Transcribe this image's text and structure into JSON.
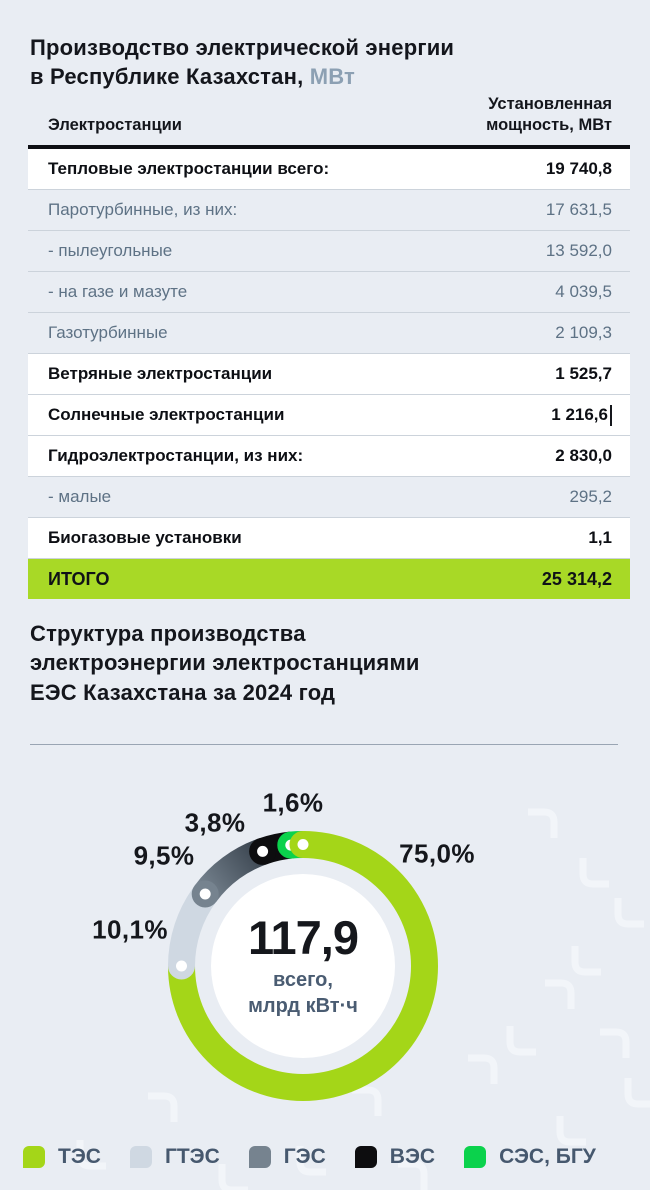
{
  "header": {
    "title_line1": "Производство электрической энергии",
    "title_line2": "в Республике Казахстан,",
    "title_unit": "МВт"
  },
  "section2": {
    "title_line1": "Структура производства",
    "title_line2": "электроэнергии электростанциями",
    "title_line3": "ЕЭС Казахстана за 2024 год"
  },
  "chart_data": [
    {
      "type": "table",
      "title": "Производство электрической энергии в Республике Казахстан, МВт",
      "columns": [
        "Электростанции",
        "Установленная мощность, МВт"
      ],
      "rows": [
        {
          "label": "Тепловые электростанции всего:",
          "value": "19 740,8",
          "emphasis": "bold"
        },
        {
          "label": "Паротурбинные, из них:",
          "value": "17 631,5",
          "emphasis": "sub"
        },
        {
          "label": "- пылеугольные",
          "value": "13 592,0",
          "emphasis": "sub"
        },
        {
          "label": "- на газе и мазуте",
          "value": "4 039,5",
          "emphasis": "sub"
        },
        {
          "label": "Газотурбинные",
          "value": "2 109,3",
          "emphasis": "sub"
        },
        {
          "label": "Ветряные электростанции",
          "value": "1 525,7",
          "emphasis": "bold"
        },
        {
          "label": "Солнечные электростанции",
          "value": "1 216,6",
          "emphasis": "bold",
          "text_cursor": true
        },
        {
          "label": "Гидроэлектростанции, из них:",
          "value": "2 830,0",
          "emphasis": "bold"
        },
        {
          "label": "- малые",
          "value": "295,2",
          "emphasis": "sub"
        },
        {
          "label": "Биогазовые установки",
          "value": "1,1",
          "emphasis": "bold"
        },
        {
          "label": "ИТОГО",
          "value": "25 314,2",
          "emphasis": "total"
        }
      ],
      "total_row_color": "#a8d926"
    },
    {
      "type": "pie",
      "donut": true,
      "title": "Структура производства электроэнергии электростанциями ЕЭС Казахстана за 2024 год",
      "unit": "%",
      "start_angle_deg": 0,
      "direction": "clockwise",
      "center_value": "117,9",
      "center_label_line1": "всего,",
      "center_label_line2": "млрд кВт·ч",
      "segments": [
        {
          "name": "ТЭС",
          "pct": 75.0,
          "label": "75,0%",
          "color": "#a4d618"
        },
        {
          "name": "ГТЭС",
          "pct": 10.1,
          "label": "10,1%",
          "color": "#cfd8e2"
        },
        {
          "name": "ГЭС",
          "pct": 9.5,
          "label": "9,5%",
          "color": "#76838f",
          "color_end": "#39434e"
        },
        {
          "name": "ВЭС",
          "pct": 3.8,
          "label": "3,8%",
          "color": "#0d0d0f"
        },
        {
          "name": "СЭС, БГУ",
          "pct": 1.6,
          "label": "1,6%",
          "color": "#0bd24c"
        }
      ],
      "legend_position": "bottom"
    }
  ]
}
